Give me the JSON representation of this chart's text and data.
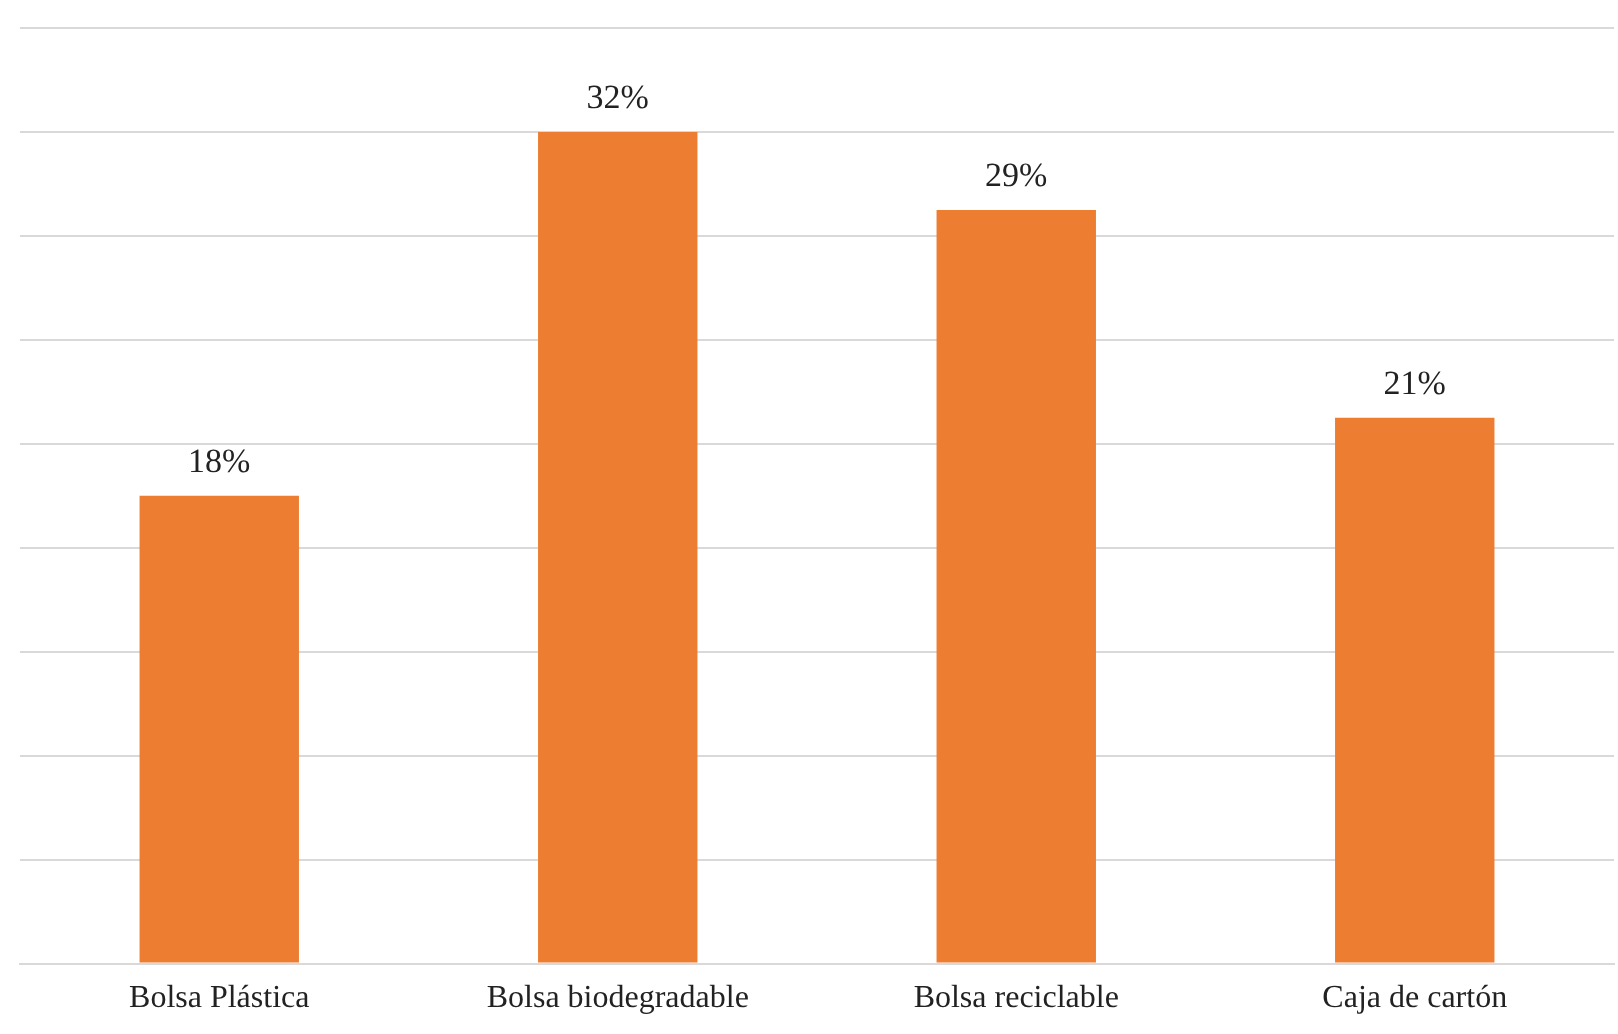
{
  "chart_data": {
    "type": "bar",
    "categories": [
      "Bolsa Plástica",
      "Bolsa biodegradable",
      "Bolsa reciclable",
      "Caja de cartón"
    ],
    "values": [
      18,
      32,
      29,
      21
    ],
    "value_labels": [
      "18%",
      "32%",
      "29%",
      "21%"
    ],
    "color": "#ed7d31",
    "ylim": [
      0,
      36
    ],
    "yticks": [
      {
        "value": 0,
        "label": null
      },
      {
        "value": 4,
        "label": null
      },
      {
        "value": 8,
        "label": null
      },
      {
        "value": 12,
        "label": null
      },
      {
        "value": 16,
        "label": null
      },
      {
        "value": 20,
        "label": null
      },
      {
        "value": 24,
        "label": null
      },
      {
        "value": 28,
        "label": null
      },
      {
        "value": 32,
        "label": null
      },
      {
        "value": 36,
        "label": null
      }
    ],
    "grid": "y",
    "tick_labels": "x",
    "legend": false
  }
}
